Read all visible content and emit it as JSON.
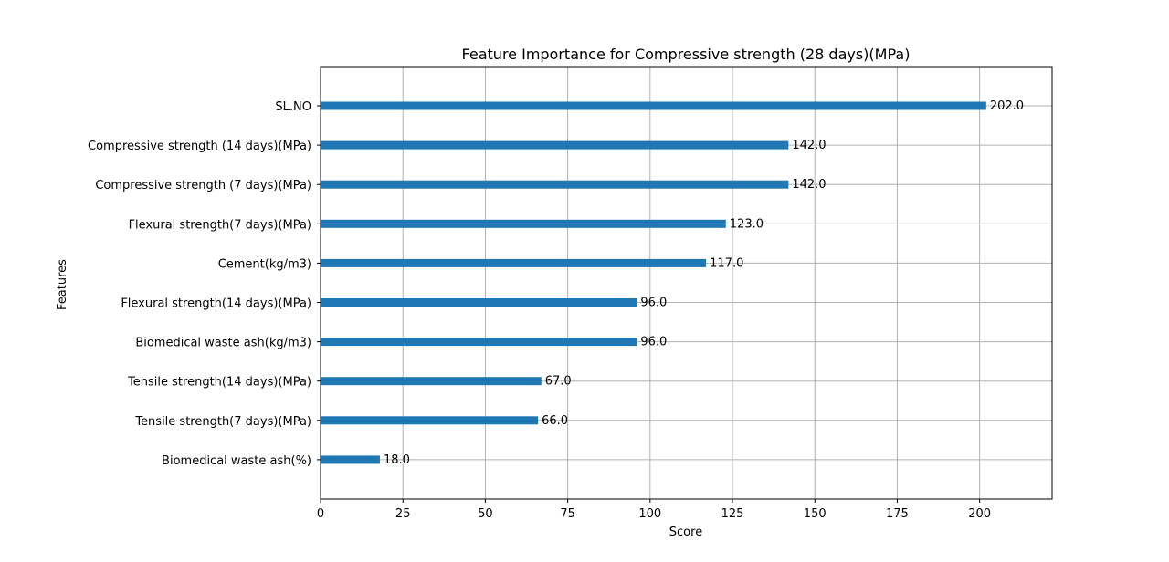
{
  "chart_data": {
    "type": "bar",
    "orientation": "horizontal",
    "title": "Feature Importance for Compressive strength (28 days)(MPa)",
    "xlabel": "Score",
    "ylabel": "Features",
    "xlim": [
      0,
      222
    ],
    "xticks": [
      0,
      25,
      50,
      75,
      100,
      125,
      150,
      175,
      200
    ],
    "grid": true,
    "color": "#1f77b4",
    "categories": [
      "SL.NO",
      "Compressive strength (14 days)(MPa)",
      "Compressive strength (7 days)(MPa)",
      "Flexural strength(7 days)(MPa)",
      "Cement(kg/m3)",
      "Flexural strength(14 days)(MPa)",
      "Biomedical waste ash(kg/m3)",
      "Tensile strength(14 days)(MPa)",
      "Tensile strength(7 days)(MPa)",
      "Biomedical waste ash(%)"
    ],
    "values": [
      202,
      142,
      142,
      123,
      117,
      96,
      96,
      67,
      66,
      18
    ],
    "value_labels": [
      "202.0",
      "142.0",
      "142.0",
      "123.0",
      "117.0",
      "96.0",
      "96.0",
      "67.0",
      "66.0",
      "18.0"
    ]
  }
}
